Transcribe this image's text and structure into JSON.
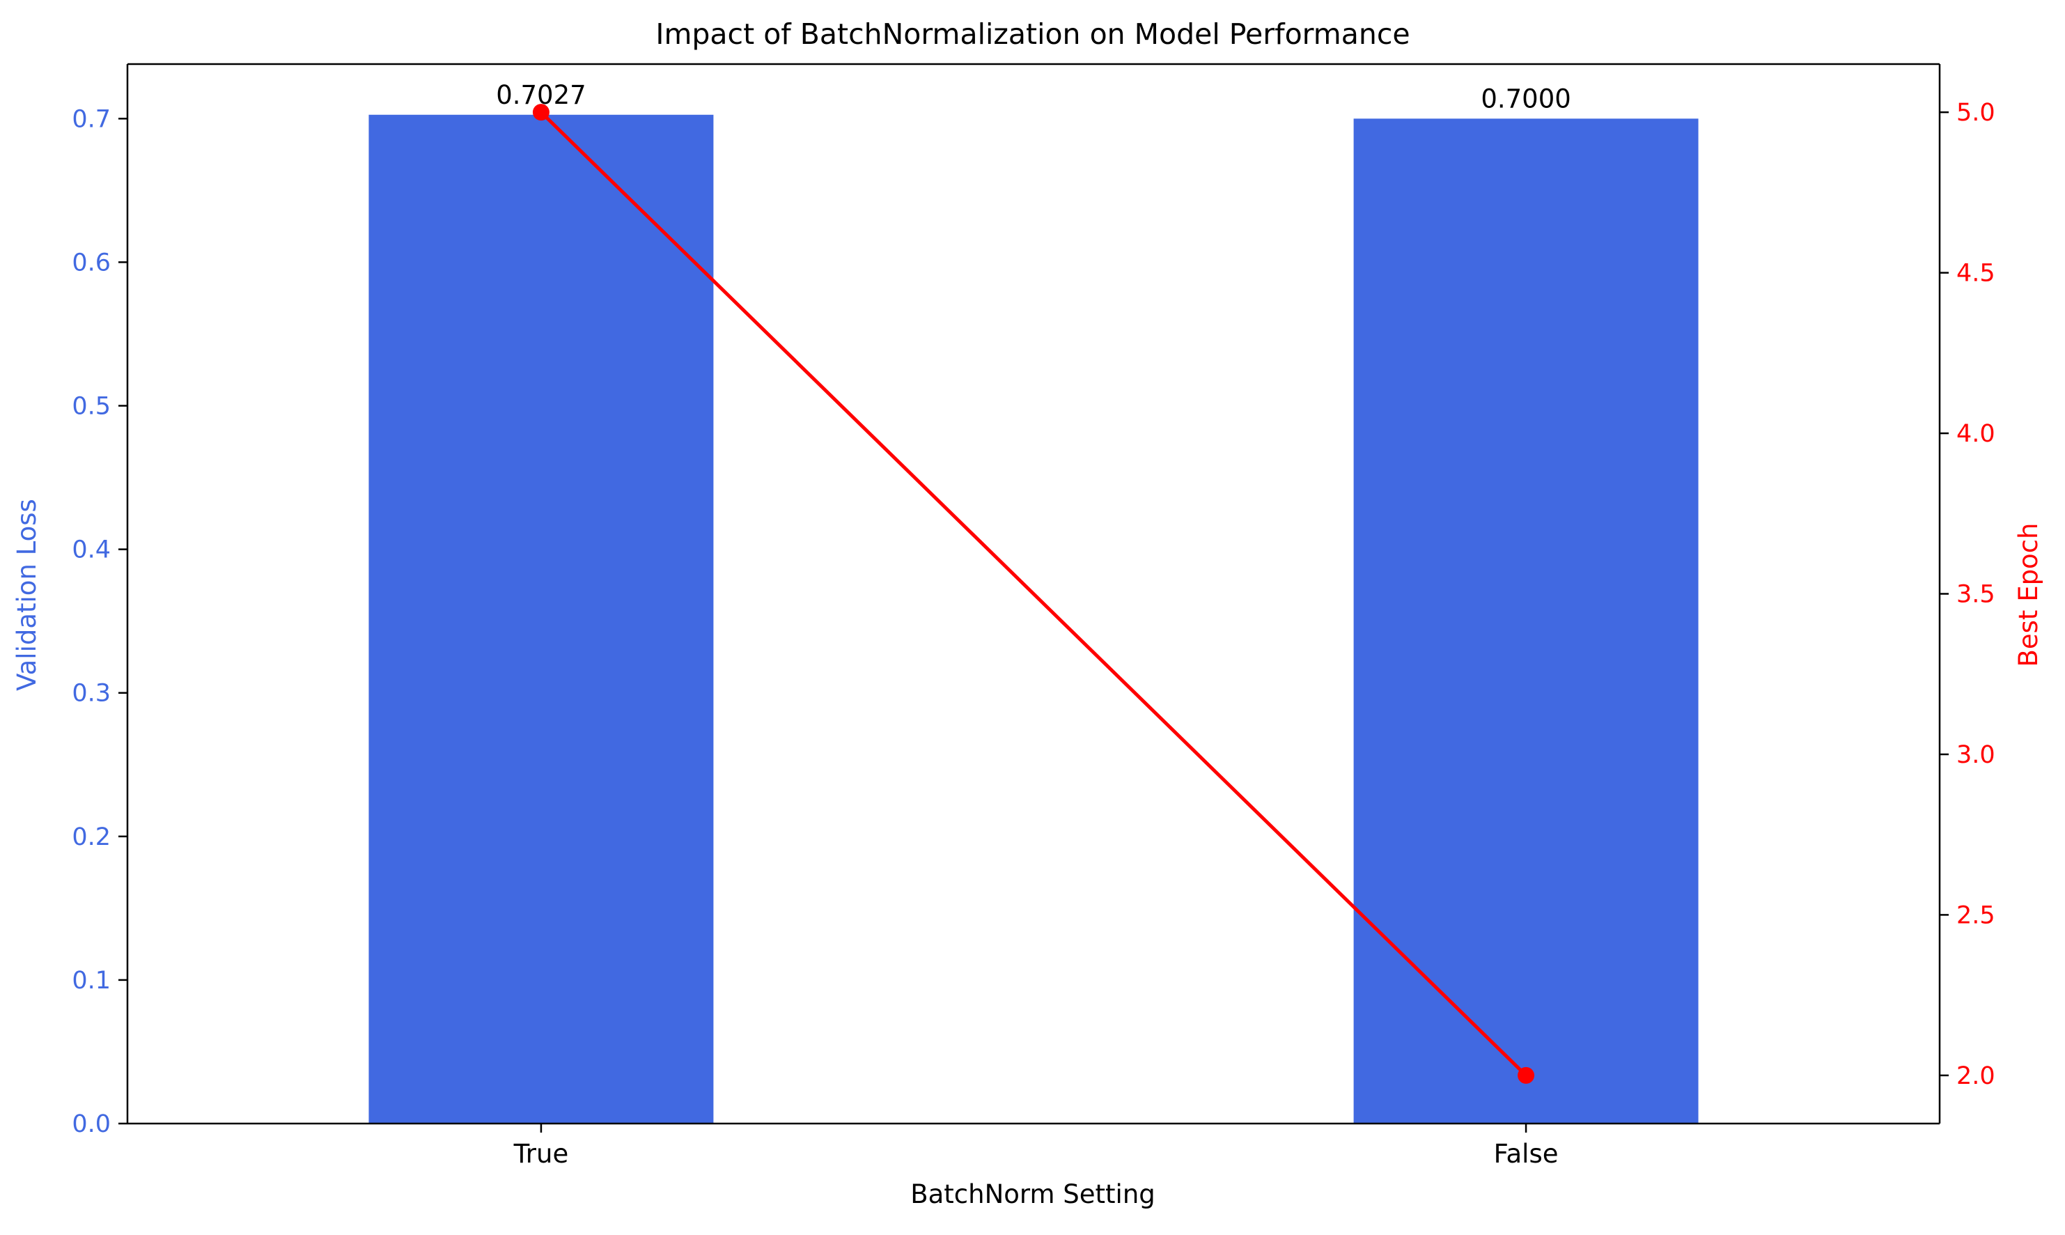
{
  "chart_data": {
    "type": "bar",
    "title": "Impact of BatchNormalization on Model Performance",
    "xlabel": "BatchNorm Setting",
    "categories": [
      "True",
      "False"
    ],
    "series": [
      {
        "name": "Validation Loss",
        "kind": "bar",
        "axis": "left",
        "values": [
          0.7027,
          0.7
        ],
        "labels": [
          "0.7027",
          "0.7000"
        ]
      },
      {
        "name": "Best Epoch",
        "kind": "line",
        "axis": "right",
        "values": [
          5,
          2
        ],
        "marker": "circle"
      }
    ],
    "y_left": {
      "label": "Validation Loss",
      "ylim": [
        0,
        0.738
      ],
      "ticks": [
        0.0,
        0.1,
        0.2,
        0.3,
        0.4,
        0.5,
        0.6,
        0.7
      ],
      "tick_labels": [
        "0.0",
        "0.1",
        "0.2",
        "0.3",
        "0.4",
        "0.5",
        "0.6",
        "0.7"
      ]
    },
    "y_right": {
      "label": "Best Epoch",
      "ylim": [
        1.85,
        5.15
      ],
      "ticks": [
        2.0,
        2.5,
        3.0,
        3.5,
        4.0,
        4.5,
        5.0
      ],
      "tick_labels": [
        "2.0",
        "2.5",
        "3.0",
        "3.5",
        "4.0",
        "4.5",
        "5.0"
      ]
    },
    "grid": false,
    "colors": {
      "bar": "#4169e1",
      "line": "#ff0000",
      "left_axis": "#4169e1",
      "right_axis": "#ff0000",
      "text": "#000000"
    }
  }
}
